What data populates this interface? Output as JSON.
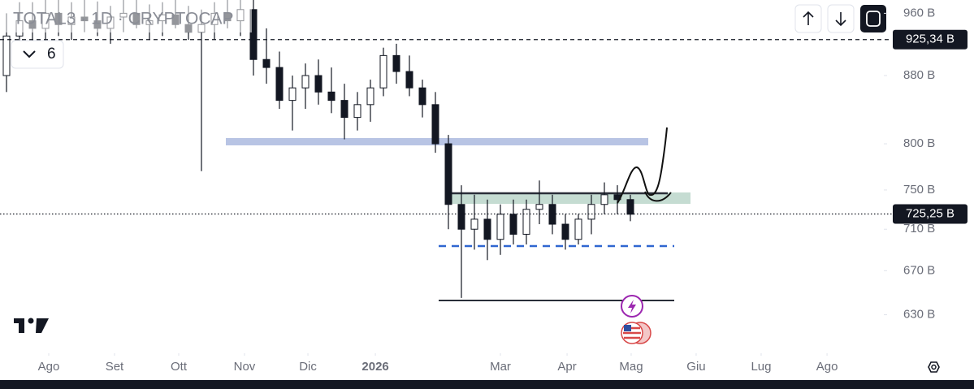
{
  "chart_data": {
    "type": "candlestick",
    "title": "TOTAL3 · 1D · CRYPTOCAP",
    "indicator_count": "6",
    "log_scale": true,
    "color": "#131722",
    "open": [
      880,
      930,
      950,
      940,
      960,
      945,
      955,
      950,
      940,
      955,
      960,
      945,
      950,
      958,
      945,
      935,
      945,
      960,
      950,
      965,
      900,
      890,
      850,
      865,
      880,
      860,
      850,
      830,
      845,
      865,
      905,
      885,
      865,
      845,
      800,
      735,
      710,
      720,
      700,
      725,
      705,
      730,
      735,
      715,
      700,
      720,
      735,
      745,
      740
    ],
    "high": [
      960,
      975,
      975,
      978,
      978,
      975,
      978,
      976,
      970,
      978,
      978,
      972,
      975,
      978,
      970,
      965,
      975,
      978,
      978,
      978,
      940,
      910,
      880,
      895,
      900,
      890,
      870,
      860,
      875,
      915,
      920,
      905,
      875,
      860,
      810,
      755,
      745,
      740,
      735,
      740,
      740,
      760,
      745,
      725,
      725,
      745,
      758,
      755,
      745
    ],
    "low": [
      860,
      900,
      920,
      915,
      930,
      925,
      935,
      930,
      920,
      935,
      940,
      925,
      930,
      940,
      925,
      770,
      925,
      940,
      930,
      880,
      870,
      840,
      815,
      840,
      845,
      835,
      805,
      815,
      825,
      855,
      870,
      855,
      830,
      790,
      710,
      645,
      690,
      680,
      685,
      695,
      695,
      715,
      705,
      690,
      695,
      705,
      725,
      725,
      718
    ],
    "close": [
      930,
      950,
      940,
      960,
      945,
      955,
      950,
      940,
      955,
      960,
      945,
      950,
      958,
      945,
      935,
      945,
      960,
      950,
      965,
      900,
      890,
      850,
      865,
      880,
      860,
      850,
      830,
      845,
      865,
      905,
      885,
      865,
      845,
      800,
      735,
      710,
      720,
      700,
      725,
      705,
      730,
      735,
      715,
      700,
      720,
      735,
      745,
      740,
      725
    ],
    "xlim": [
      -0.5,
      67.5
    ],
    "xticks": [
      {
        "value": 3.25,
        "label": "Ago"
      },
      {
        "value": 8.31,
        "label": "Set"
      },
      {
        "value": 13.25,
        "label": "Ott"
      },
      {
        "value": 18.31,
        "label": "Nov"
      },
      {
        "value": 23.19,
        "label": "Dic"
      },
      {
        "value": 28.38,
        "label": "2026"
      },
      {
        "value": 38,
        "label": "Mar"
      },
      {
        "value": 43.13,
        "label": "Apr"
      },
      {
        "value": 48.06,
        "label": "Mag"
      },
      {
        "value": 53.06,
        "label": "Giu"
      },
      {
        "value": 58.06,
        "label": "Lug"
      },
      {
        "value": 63.13,
        "label": "Ago"
      }
    ],
    "ylim": [
      597,
      978
    ],
    "yticks": [
      {
        "value": 960,
        "label": "960 B"
      },
      {
        "value": 880,
        "label": "880 B"
      },
      {
        "value": 800,
        "label": "800 B"
      },
      {
        "value": 750,
        "label": "750 B"
      },
      {
        "value": 710,
        "label": "710 B"
      },
      {
        "value": 670,
        "label": "670 B"
      },
      {
        "value": 630,
        "label": "630 B"
      }
    ],
    "price_lines": [
      {
        "value": 925.34,
        "label": "925,34 B",
        "style": "dashed"
      },
      {
        "value": 725.25,
        "label": "725,25 B",
        "style": "dotted"
      }
    ]
  }
}
